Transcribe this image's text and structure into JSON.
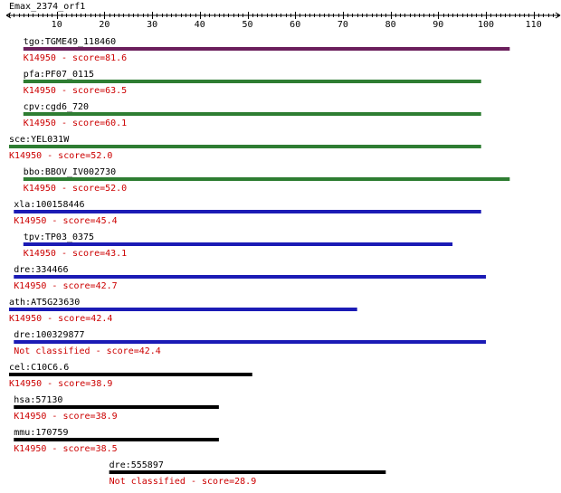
{
  "query_title": "Emax_2374_orf1",
  "axis": {
    "min": 0,
    "max": 115,
    "tick_labels": [
      "10",
      "20",
      "30",
      "40",
      "50",
      "60",
      "70",
      "80",
      "90",
      "100",
      "110"
    ]
  },
  "colors": {
    "text": "#000000",
    "annotation": "#cc0000",
    "purple": "#6b1f5c",
    "green": "#2e7d32",
    "blue": "#1b1bb5",
    "black": "#000000"
  },
  "hits": [
    {
      "gene": "tgo:TGME49_118460",
      "annotation": "K14950 - score=81.6",
      "start": 3,
      "end": 105,
      "color": "purple"
    },
    {
      "gene": "pfa:PF07_0115",
      "annotation": "K14950 - score=63.5",
      "start": 3,
      "end": 99,
      "color": "green"
    },
    {
      "gene": "cpv:cgd6_720",
      "annotation": "K14950 - score=60.1",
      "start": 3,
      "end": 99,
      "color": "green"
    },
    {
      "gene": "sce:YEL031W",
      "annotation": "K14950 - score=52.0",
      "start": 0,
      "end": 99,
      "color": "green"
    },
    {
      "gene": "bbo:BBOV_IV002730",
      "annotation": "K14950 - score=52.0",
      "start": 3,
      "end": 105,
      "color": "green"
    },
    {
      "gene": "xla:100158446",
      "annotation": "K14950 - score=45.4",
      "start": 1,
      "end": 99,
      "color": "blue"
    },
    {
      "gene": "tpv:TP03_0375",
      "annotation": "K14950 - score=43.1",
      "start": 3,
      "end": 93,
      "color": "blue"
    },
    {
      "gene": "dre:334466",
      "annotation": "K14950 - score=42.7",
      "start": 1,
      "end": 100,
      "color": "blue"
    },
    {
      "gene": "ath:AT5G23630",
      "annotation": "K14950 - score=42.4",
      "start": 0,
      "end": 73,
      "color": "blue"
    },
    {
      "gene": "dre:100329877",
      "annotation": "Not classified - score=42.4",
      "start": 1,
      "end": 100,
      "color": "blue"
    },
    {
      "gene": "cel:C10C6.6",
      "annotation": "K14950 - score=38.9",
      "start": 0,
      "end": 51,
      "color": "black"
    },
    {
      "gene": "hsa:57130",
      "annotation": "K14950 - score=38.9",
      "start": 1,
      "end": 44,
      "color": "black"
    },
    {
      "gene": "mmu:170759",
      "annotation": "K14950 - score=38.5",
      "start": 1,
      "end": 44,
      "color": "black"
    },
    {
      "gene": "dre:555897",
      "annotation": "Not classified - score=28.9",
      "start": 21,
      "end": 79,
      "color": "black"
    }
  ]
}
